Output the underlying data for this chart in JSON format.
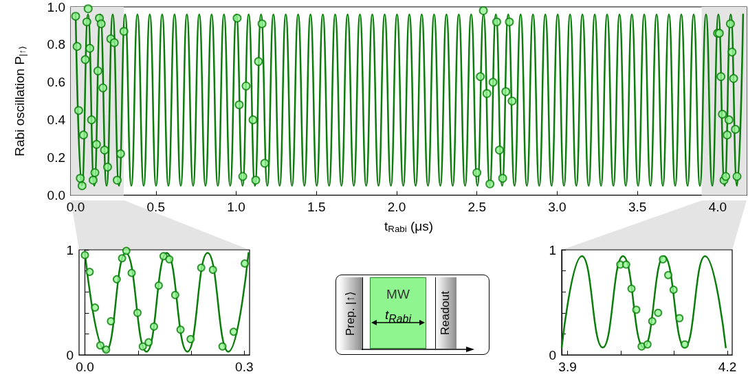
{
  "chart_data": [
    {
      "type": "line",
      "xlabel": "t$_{Rabi}$ (μs)",
      "ylabel": "Rabi oscillation P$_{|↑⟩}$",
      "xlim": [
        -0.03,
        4.18
      ],
      "ylim": [
        0,
        1
      ],
      "xticks": [
        {
          "value": 0,
          "label": "0.0"
        },
        {
          "value": 0.5,
          "label": "0.5"
        },
        {
          "value": 1,
          "label": "1.0"
        },
        {
          "value": 1.5,
          "label": "1.5"
        },
        {
          "value": 2,
          "label": "2.0"
        },
        {
          "value": 2.5,
          "label": "2.5"
        },
        {
          "value": 3,
          "label": "3.0"
        },
        {
          "value": 3.5,
          "label": "3.5"
        },
        {
          "value": 4,
          "label": "4.0"
        }
      ],
      "yticks": [
        {
          "value": 0,
          "label": "0.0"
        },
        {
          "value": 0.2,
          "label": "0.2"
        },
        {
          "value": 0.4,
          "label": "0.4"
        },
        {
          "value": 0.6,
          "label": "0.6"
        },
        {
          "value": 0.8,
          "label": "0.8"
        },
        {
          "value": 1,
          "label": "1.0"
        }
      ],
      "bands": [
        {
          "axis": "x",
          "from": -0.03,
          "to": 0.3,
          "color": "#e4e4e4"
        },
        {
          "axis": "x",
          "from": 3.9,
          "to": 4.18,
          "color": "#e4e4e4"
        }
      ],
      "series": [
        {
          "type": "line",
          "marker": "none",
          "color": "#0a7d0a",
          "x": [
            0,
            0.039,
            0.077,
            0.116,
            0.154,
            0.193,
            0.231,
            0.27,
            0.308,
            0.347,
            0.385,
            0.424,
            0.462,
            0.501,
            0.539,
            0.578,
            0.616,
            0.655,
            0.693,
            0.732,
            0.77,
            0.809,
            0.847,
            0.886,
            0.924,
            0.963,
            1.001,
            1.04,
            1.078,
            1.117,
            1.155,
            1.194,
            1.232,
            1.271,
            1.309,
            1.348,
            1.386,
            1.425,
            1.463,
            1.502,
            1.54,
            1.579,
            1.617,
            1.656,
            1.694,
            1.733,
            1.771,
            1.81,
            1.848,
            1.887,
            1.925,
            1.964,
            2.002,
            2.041,
            2.079,
            2.118,
            2.156,
            2.195,
            2.233,
            2.272,
            2.31,
            2.349,
            2.387,
            2.426,
            2.464,
            2.503,
            2.541,
            2.58,
            2.618,
            2.657,
            2.695,
            2.734,
            2.772,
            2.811,
            2.849,
            2.888,
            2.926,
            2.965,
            3.003,
            3.042,
            3.08,
            3.119,
            3.157,
            3.196,
            3.234,
            3.273,
            3.311,
            3.35,
            3.388,
            3.427,
            3.465,
            3.504,
            3.542,
            3.581,
            3.619,
            3.658,
            3.696,
            3.735,
            3.773,
            3.812,
            3.85,
            3.889,
            3.927,
            3.966,
            4.004,
            4.043,
            4.081,
            4.12,
            4.158
          ],
          "values": [
            0.96,
            0.05,
            0.96,
            0.05,
            0.96,
            0.05,
            0.96,
            0.05,
            0.96,
            0.05,
            0.96,
            0.05,
            0.96,
            0.05,
            0.96,
            0.05,
            0.96,
            0.05,
            0.96,
            0.05,
            0.96,
            0.05,
            0.96,
            0.05,
            0.96,
            0.05,
            0.96,
            0.05,
            0.96,
            0.05,
            0.96,
            0.05,
            0.96,
            0.05,
            0.96,
            0.05,
            0.96,
            0.05,
            0.96,
            0.05,
            0.96,
            0.05,
            0.96,
            0.05,
            0.96,
            0.05,
            0.96,
            0.05,
            0.96,
            0.05,
            0.96,
            0.05,
            0.96,
            0.05,
            0.96,
            0.05,
            0.96,
            0.05,
            0.96,
            0.05,
            0.96,
            0.05,
            0.96,
            0.05,
            0.96,
            0.05,
            0.96,
            0.05,
            0.96,
            0.05,
            0.96,
            0.05,
            0.96,
            0.05,
            0.96,
            0.05,
            0.96,
            0.05,
            0.96,
            0.05,
            0.96,
            0.05,
            0.96,
            0.05,
            0.96,
            0.05,
            0.96,
            0.05,
            0.96,
            0.05,
            0.96,
            0.05,
            0.96,
            0.05,
            0.96,
            0.05,
            0.96,
            0.05,
            0.96,
            0.05,
            0.96,
            0.05,
            0.96,
            0.05,
            0.96,
            0.05,
            0.96,
            0.05,
            0.96
          ]
        },
        {
          "type": "scatter",
          "marker": "circle",
          "color": "#93f793",
          "x": [
            0,
            0.009,
            0.019,
            0.029,
            0.04,
            0.049,
            0.06,
            0.07,
            0.078,
            0.088,
            0.099,
            0.109,
            0.12,
            0.13,
            0.139,
            0.148,
            0.159,
            0.17,
            0.18,
            0.199,
            0.219,
            0.241,
            0.259,
            0.28,
            0.301,
            1.006,
            1.019,
            1.041,
            1.062,
            1.105,
            1.122,
            1.139,
            1.161,
            1.178,
            2.5,
            2.521,
            2.54,
            2.562,
            2.581,
            2.6,
            2.623,
            2.64,
            2.66,
            2.68,
            2.702,
            2.719,
            3.999,
            4.01,
            4.02,
            4.029,
            4.039,
            4.05,
            4.059,
            4.07,
            4.079,
            4.089,
            4.099,
            4.11,
            4.12
          ],
          "values": [
            0.95,
            0.79,
            0.45,
            0.09,
            0.05,
            0.32,
            0.72,
            0.92,
            0.99,
            0.78,
            0.4,
            0.08,
            0.12,
            0.27,
            0.66,
            0.94,
            0.91,
            0.57,
            0.24,
            0.15,
            0.83,
            0.81,
            0.08,
            0.22,
            0.87,
            0.94,
            0.48,
            0.1,
            0.58,
            0.4,
            0.08,
            0.71,
            0.91,
            0.17,
            0.12,
            0.63,
            0.98,
            0.54,
            0.06,
            0.6,
            0.92,
            0.24,
            0.09,
            0.55,
            0.92,
            0.5,
            0.86,
            0.86,
            0.63,
            0.43,
            0.08,
            0.1,
            0.32,
            0.4,
            0.91,
            0.76,
            0.62,
            0.35,
            0.1
          ]
        }
      ]
    },
    {
      "type": "line",
      "xlim": [
        -0.011,
        0.31
      ],
      "ylim": [
        0,
        1
      ],
      "xticks": [
        {
          "value": 0,
          "label": "0.0"
        },
        {
          "value": 0.1,
          "label": null
        },
        {
          "value": 0.2,
          "label": null
        },
        {
          "value": 0.3,
          "label": "0.3"
        }
      ],
      "yticks": [
        {
          "value": 0,
          "label": "0"
        },
        {
          "value": 0.2,
          "label": null
        },
        {
          "value": 0.4,
          "label": null
        },
        {
          "value": 0.6,
          "label": null
        },
        {
          "value": 0.8,
          "label": null
        },
        {
          "value": 1,
          "label": "1"
        }
      ],
      "series": [
        {
          "type": "line",
          "marker": "none",
          "color": "#0a7d0a",
          "x": [
            0,
            0.039,
            0.077,
            0.116,
            0.154,
            0.193,
            0.231,
            0.27,
            0.308
          ],
          "values": [
            0.97,
            0.03,
            0.97,
            0.03,
            0.97,
            0.03,
            0.97,
            0.03,
            0.97
          ]
        },
        {
          "type": "scatter",
          "marker": "circle",
          "color": "#93f793",
          "x": [
            0,
            0.009,
            0.019,
            0.029,
            0.04,
            0.049,
            0.06,
            0.07,
            0.078,
            0.088,
            0.099,
            0.109,
            0.12,
            0.13,
            0.139,
            0.148,
            0.159,
            0.17,
            0.18,
            0.199,
            0.219,
            0.241,
            0.259,
            0.28,
            0.301
          ],
          "values": [
            0.95,
            0.79,
            0.45,
            0.09,
            0.05,
            0.32,
            0.72,
            0.92,
            0.99,
            0.78,
            0.4,
            0.08,
            0.12,
            0.27,
            0.66,
            0.94,
            0.91,
            0.57,
            0.24,
            0.15,
            0.83,
            0.81,
            0.08,
            0.22,
            0.87
          ]
        }
      ]
    },
    {
      "type": "line",
      "xlim": [
        3.889,
        4.209
      ],
      "ylim": [
        0,
        1
      ],
      "xticks": [
        {
          "value": 3.9,
          "label": "3.9"
        },
        {
          "value": 4.0,
          "label": null
        },
        {
          "value": 4.1,
          "label": null
        },
        {
          "value": 4.2,
          "label": "4.2"
        }
      ],
      "yticks": [
        {
          "value": 0,
          "label": "0"
        },
        {
          "value": 0.2,
          "label": null
        },
        {
          "value": 0.4,
          "label": null
        },
        {
          "value": 0.6,
          "label": null
        },
        {
          "value": 0.8,
          "label": null
        },
        {
          "value": 1,
          "label": "1"
        }
      ],
      "series": [
        {
          "type": "line",
          "marker": "none",
          "color": "#0a7d0a",
          "x": [
            3.889,
            3.927,
            3.966,
            4.004,
            4.043,
            4.081,
            4.12,
            4.158,
            4.197
          ],
          "values": [
            0.07,
            0.94,
            0.07,
            0.94,
            0.07,
            0.94,
            0.07,
            0.94,
            0.07
          ]
        },
        {
          "type": "scatter",
          "marker": "circle",
          "color": "#93f793",
          "x": [
            3.999,
            4.01,
            4.02,
            4.029,
            4.039,
            4.05,
            4.059,
            4.07,
            4.079,
            4.089,
            4.099,
            4.11,
            4.12
          ],
          "values": [
            0.86,
            0.86,
            0.63,
            0.43,
            0.08,
            0.1,
            0.32,
            0.4,
            0.91,
            0.76,
            0.62,
            0.35,
            0.1
          ]
        }
      ]
    },
    {
      "type": "other",
      "annotations": [
        "Prep. |↑⟩",
        "MW",
        "t$_{Rabi}$",
        "Readout"
      ]
    }
  ]
}
